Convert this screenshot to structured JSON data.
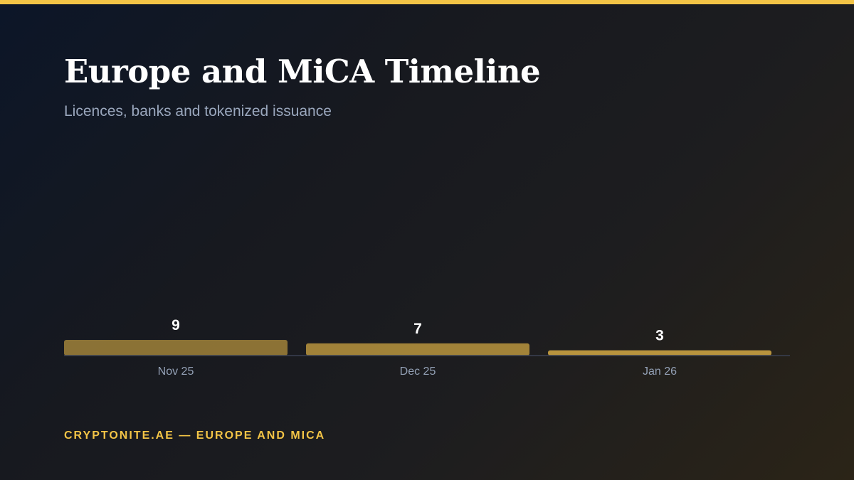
{
  "title": "Europe and MiCA Timeline",
  "subtitle": "Licences, banks and tokenized issuance",
  "footer": "CRYPTONITE.AE — EUROPE AND MICA",
  "colors": {
    "accent": "#f3c446",
    "bar": "#b8943e",
    "axis": "#3a4152"
  },
  "chart_data": {
    "type": "bar",
    "title": "Europe and MiCA Timeline",
    "subtitle": "Licences, banks and tokenized issuance",
    "categories": [
      "Nov 25",
      "Dec 25",
      "Jan 26"
    ],
    "values": [
      9,
      7,
      3
    ],
    "data_labels": [
      "9",
      "7",
      "3"
    ],
    "xlabel": "",
    "ylabel": "",
    "ylim": [
      0,
      100
    ],
    "grid": false,
    "legend": "none"
  }
}
